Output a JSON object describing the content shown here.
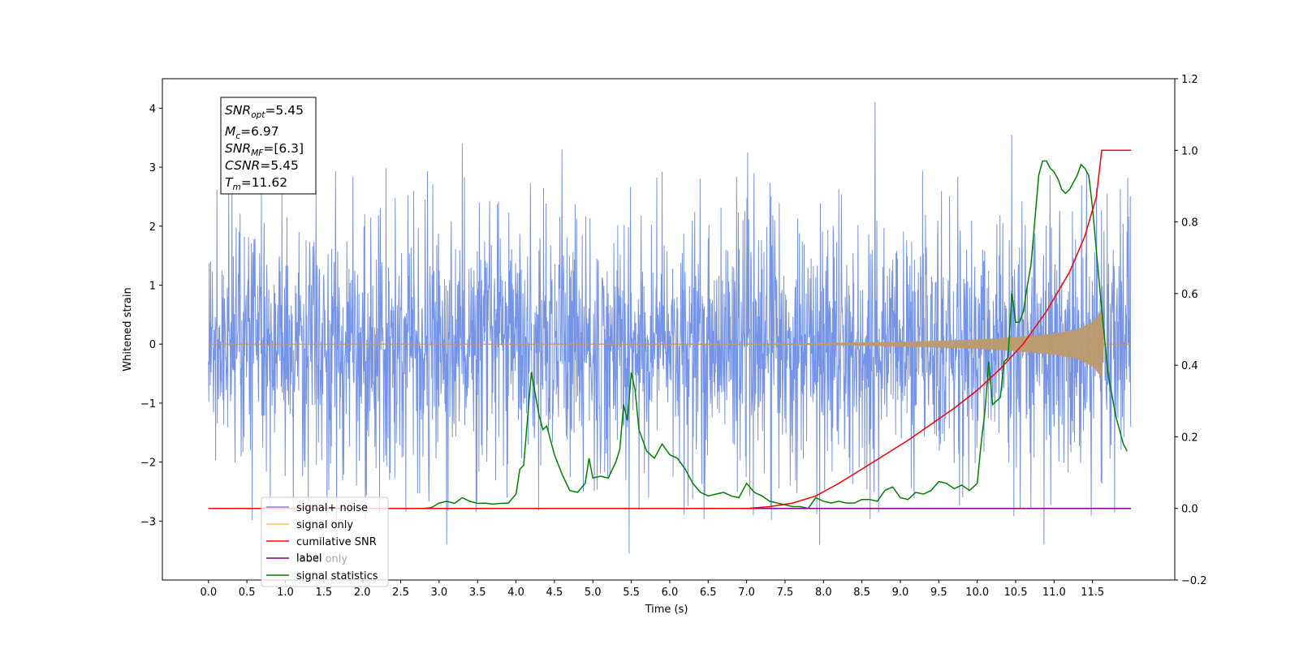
{
  "chart_data": {
    "type": "line",
    "xlabel": "Time (s)",
    "ylabel": "Whitened strain",
    "xlim": [
      -0.6,
      12.57
    ],
    "ylim": [
      -4.0,
      4.5
    ],
    "y2lim": [
      -0.2,
      1.2
    ],
    "x_ticks": [
      "0.0",
      "0.5",
      "1.0",
      "1.5",
      "2.0",
      "2.5",
      "3.0",
      "3.5",
      "4.0",
      "4.5",
      "5.0",
      "5.5",
      "6.0",
      "6.5",
      "7.0",
      "7.5",
      "8.0",
      "8.5",
      "9.0",
      "9.5",
      "10.0",
      "10.5",
      "11.0",
      "11.5"
    ],
    "y_ticks": [
      "−3",
      "−2",
      "−1",
      "0",
      "1",
      "2",
      "3",
      "4"
    ],
    "y2_ticks": [
      "−0.2",
      "0.0",
      "0.2",
      "0.4",
      "0.6",
      "0.8",
      "1.0",
      "1.2"
    ],
    "grid": false,
    "legend_position": "lower-left",
    "legend": [
      "signal+ noise",
      "signal only",
      "cumilative SNR",
      "label",
      "label only",
      "signal statistics"
    ],
    "annotation": {
      "snr_opt": "=5.45",
      "mc": "=6.97",
      "snr_mf": "=[6.3]",
      "csnr": "=5.45",
      "tm": "=11.62"
    },
    "colors": {
      "signal_noise": "#6f8ee6",
      "signal_only": "#ffbf60",
      "signal_only_visible": "#bd9a6d",
      "cumulative_snr": "#ff0000",
      "label": "#800080",
      "signal_statistics": "#008000"
    },
    "series": [
      {
        "name": "signal+ noise",
        "axis": "left",
        "description_range": [
          -3.55,
          4.1
        ],
        "x_range": [
          0.0,
          12.0
        ],
        "typical_band": [
          -1.4,
          1.6
        ],
        "spikes": [
          [
            3.3,
            3.4
          ],
          [
            4.6,
            3.3
          ],
          [
            5.47,
            -3.55
          ],
          [
            8.67,
            4.1
          ],
          [
            10.45,
            3.55
          ],
          [
            10.87,
            -3.4
          ],
          [
            7.95,
            -3.4
          ],
          [
            3.1,
            -3.4
          ],
          [
            11.55,
            2.65
          ]
        ]
      },
      {
        "name": "signal only",
        "axis": "left",
        "envelope": [
          [
            0.0,
            0.0
          ],
          [
            7.5,
            0.01
          ],
          [
            8.0,
            0.02
          ],
          [
            9.0,
            0.04
          ],
          [
            10.0,
            0.08
          ],
          [
            10.5,
            0.12
          ],
          [
            11.0,
            0.18
          ],
          [
            11.3,
            0.25
          ],
          [
            11.5,
            0.38
          ],
          [
            11.58,
            0.5
          ],
          [
            11.62,
            0.6
          ],
          [
            11.65,
            0.0
          ],
          [
            12.0,
            0.0
          ]
        ]
      },
      {
        "name": "cumilative SNR",
        "axis": "right",
        "x": [
          0.0,
          7.0,
          7.3,
          7.6,
          7.9,
          8.2,
          8.5,
          8.8,
          9.1,
          9.4,
          9.7,
          10.0,
          10.3,
          10.6,
          10.9,
          11.2,
          11.4,
          11.55,
          11.62,
          12.0
        ],
        "y": [
          0.0,
          0.0,
          0.005,
          0.015,
          0.035,
          0.07,
          0.11,
          0.15,
          0.19,
          0.235,
          0.28,
          0.33,
          0.39,
          0.46,
          0.55,
          0.66,
          0.76,
          0.87,
          1.0,
          1.0
        ]
      },
      {
        "name": "label",
        "axis": "right",
        "x": [
          0.0,
          12.0
        ],
        "y": [
          0.0,
          0.0
        ]
      },
      {
        "name": "signal statistics",
        "axis": "right",
        "x": [
          0.0,
          0.1,
          0.2,
          0.3,
          0.4,
          0.5,
          0.6,
          0.7,
          0.8,
          0.9,
          1.0,
          1.1,
          1.2,
          1.3,
          1.4,
          1.5,
          1.6,
          1.7,
          1.8,
          1.9,
          2.0,
          2.1,
          2.2,
          2.3,
          2.4,
          2.5,
          2.6,
          2.7,
          2.8,
          2.9,
          3.0,
          3.1,
          3.2,
          3.3,
          3.4,
          3.5,
          3.6,
          3.7,
          3.8,
          3.9,
          4.0,
          4.05,
          4.1,
          4.2,
          4.3,
          4.35,
          4.4,
          4.5,
          4.6,
          4.7,
          4.8,
          4.9,
          4.95,
          5.0,
          5.1,
          5.2,
          5.3,
          5.35,
          5.4,
          5.45,
          5.5,
          5.55,
          5.6,
          5.7,
          5.8,
          5.9,
          6.0,
          6.1,
          6.2,
          6.3,
          6.4,
          6.5,
          6.6,
          6.7,
          6.8,
          6.9,
          7.0,
          7.1,
          7.2,
          7.3,
          7.4,
          7.5,
          7.6,
          7.7,
          7.8,
          7.9,
          8.0,
          8.1,
          8.2,
          8.3,
          8.4,
          8.5,
          8.6,
          8.7,
          8.8,
          8.9,
          9.0,
          9.1,
          9.2,
          9.3,
          9.4,
          9.5,
          9.6,
          9.7,
          9.8,
          9.9,
          10.0,
          10.05,
          10.1,
          10.15,
          10.2,
          10.3,
          10.35,
          10.4,
          10.45,
          10.5,
          10.55,
          10.6,
          10.65,
          10.7,
          10.8,
          10.85,
          10.9,
          10.95,
          11.0,
          11.05,
          11.1,
          11.15,
          11.2,
          11.3,
          11.35,
          11.4,
          11.45,
          11.5,
          11.55,
          11.6,
          11.7,
          11.8,
          11.9,
          11.95
        ],
        "y": [
          0.0,
          0.0,
          0.0,
          0.0,
          0.0,
          0.0,
          0.0,
          0.0,
          0.0,
          0.0,
          0.0,
          0.0,
          0.0,
          0.0,
          0.0,
          0.0,
          0.0,
          0.0,
          0.0,
          0.0,
          0.0,
          0.0,
          0.0,
          0.0,
          0.0,
          0.0,
          0.0,
          0.0,
          0.0,
          0.002,
          0.015,
          0.02,
          0.014,
          0.03,
          0.02,
          0.014,
          0.015,
          0.012,
          0.014,
          0.015,
          0.04,
          0.11,
          0.12,
          0.38,
          0.26,
          0.22,
          0.23,
          0.15,
          0.095,
          0.05,
          0.045,
          0.07,
          0.14,
          0.085,
          0.09,
          0.085,
          0.13,
          0.165,
          0.29,
          0.245,
          0.38,
          0.33,
          0.22,
          0.16,
          0.14,
          0.18,
          0.15,
          0.14,
          0.11,
          0.07,
          0.045,
          0.035,
          0.04,
          0.045,
          0.035,
          0.03,
          0.07,
          0.045,
          0.035,
          0.02,
          0.015,
          0.01,
          0.005,
          0.005,
          0.0,
          0.03,
          0.02,
          0.015,
          0.02,
          0.015,
          0.015,
          0.025,
          0.025,
          0.02,
          0.05,
          0.06,
          0.03,
          0.025,
          0.045,
          0.04,
          0.05,
          0.075,
          0.07,
          0.055,
          0.065,
          0.05,
          0.07,
          0.18,
          0.27,
          0.41,
          0.29,
          0.31,
          0.41,
          0.42,
          0.6,
          0.52,
          0.52,
          0.55,
          0.62,
          0.68,
          0.93,
          0.97,
          0.97,
          0.95,
          0.94,
          0.92,
          0.89,
          0.88,
          0.89,
          0.93,
          0.96,
          0.95,
          0.93,
          0.84,
          0.72,
          0.6,
          0.38,
          0.26,
          0.18,
          0.16
        ]
      }
    ]
  }
}
